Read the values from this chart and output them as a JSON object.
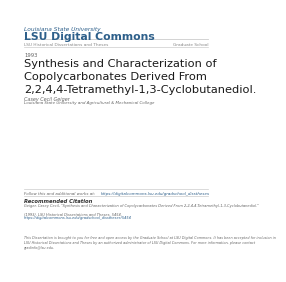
{
  "bg_color": "#ffffff",
  "header_small": "Louisiana State University",
  "header_large": "LSU Digital Commons",
  "header_color": "#2d5f8a",
  "nav_left": "LSU Historical Dissertations and Theses",
  "nav_right": "Graduate School",
  "nav_color": "#888888",
  "year": "1993",
  "title": "Synthesis and Characterization of\nCopolycarbonates Derived From\n2,2,4,4-Tetramethyl-1,3-Cyclobutanediol.",
  "author": "Casey Cecil Geiger",
  "institution": "Louisiana State University and Agricultural & Mechanical College",
  "follow_text": "Follow this and additional works at:  https://digitalcommons.lsu.edu/gradschool_disstheses",
  "rec_cite_title": "Recommended Citation",
  "citation_line1": "Geiger, Casey Cecil, \"Synthesis and Characterization of Copolycarbonates Derived From 2,2,4,4-Tetramethyl-1,3-Cyclobutanediol.\"",
  "citation_line2": "(1993). LSU Historical Dissertations and Theses. 5454.",
  "citation_line3": "https://digitalcommons.lsu.edu/gradschool_disstheses/5454",
  "disclaimer": "This Dissertation is brought to you for free and open access by the Graduate School at LSU Digital Commons. It has been accepted for inclusion in\nLSU Historical Dissertations and Theses by an authorized administrator of LSU Digital Commons. For more information, please contact\ngradinfo@lsu.edu.",
  "link_color": "#2d5f8a",
  "text_color": "#666666",
  "dark_text": "#333333",
  "line_color": "#cccccc"
}
